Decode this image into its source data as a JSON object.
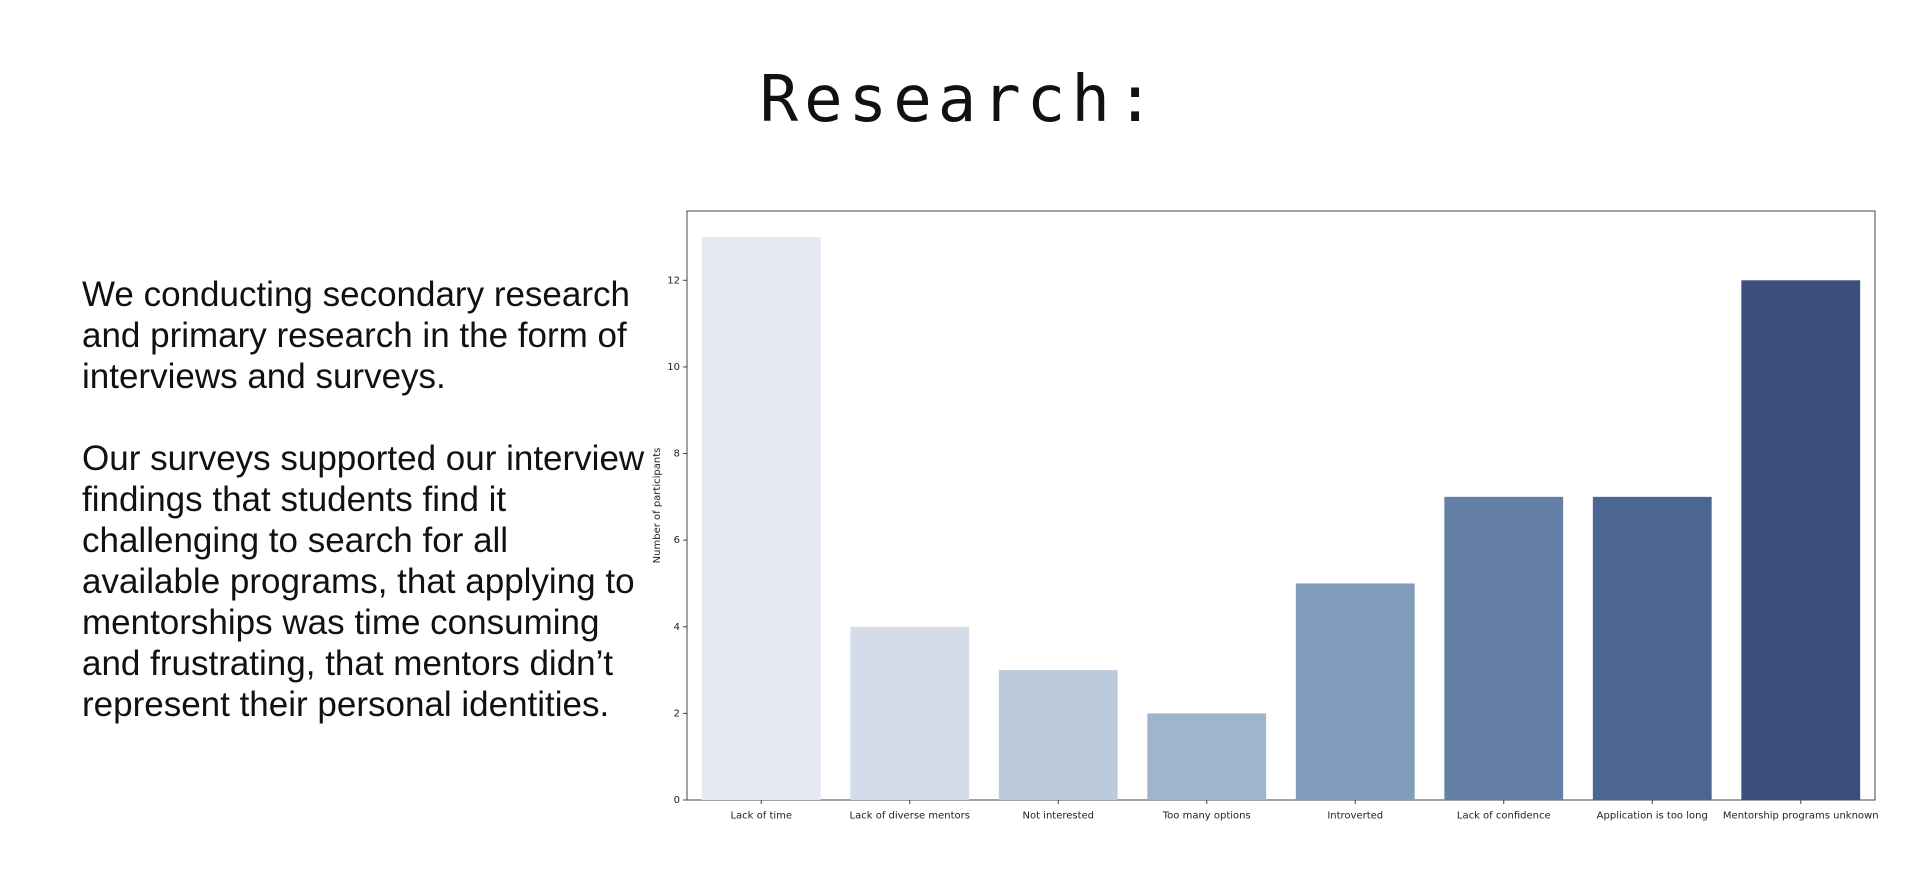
{
  "slide": {
    "title": "Research:",
    "paragraphs": [
      "We conducting secondary research and primary research in the form of interviews and surveys.",
      "Our surveys supported our interview findings that students find it challenging to search for all available programs, that applying to mentorships was time consuming and frustrating, that mentors didn’t represent their personal identities."
    ]
  },
  "chart_data": {
    "type": "bar",
    "title": "",
    "xlabel": "",
    "ylabel": "Number of participants",
    "categories": [
      "Lack of time",
      "Lack of diverse mentors",
      "Not interested",
      "Too many options",
      "Introverted",
      "Lack of confidence",
      "Application is too long",
      "Mentorship programs unknown"
    ],
    "values": [
      13,
      4,
      3,
      2,
      5,
      7,
      7,
      12
    ],
    "colors": [
      "#e4e9f2",
      "#d4dcea",
      "#bbcbdb",
      "#a0b5cb",
      "#819dbb",
      "#6580a7",
      "#4b6693",
      "#3b4e7c"
    ],
    "ylim": [
      0,
      13.6
    ],
    "yticks": [
      0,
      2,
      4,
      6,
      8,
      10,
      12
    ],
    "grid": false,
    "legend": "none"
  }
}
